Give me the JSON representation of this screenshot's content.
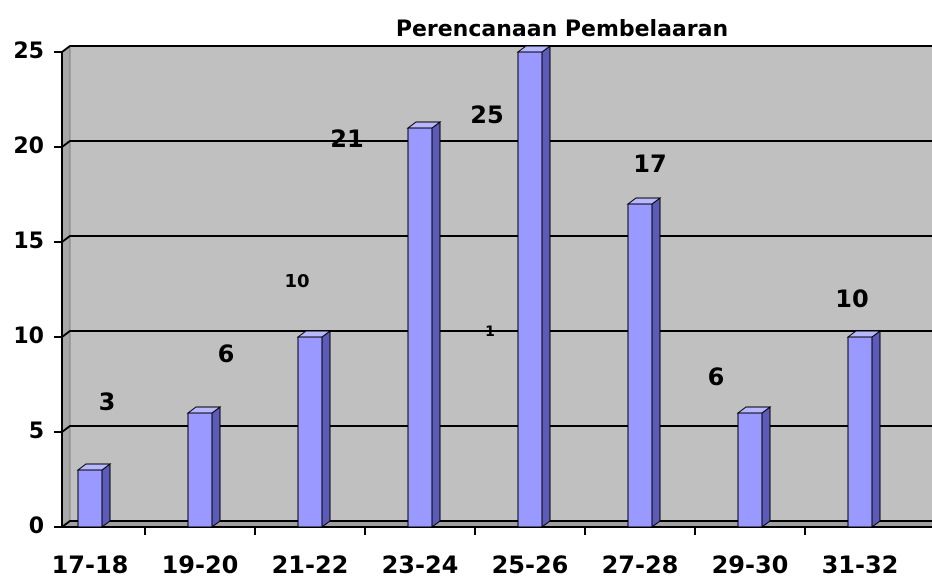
{
  "chart_data": {
    "type": "bar",
    "title": "Perencanaan Pembelaaran",
    "categories": [
      "17-18",
      "19-20",
      "21-22",
      "23-24",
      "25-26",
      "27-28",
      "29-30",
      "31-32"
    ],
    "values": [
      3,
      6,
      10,
      21,
      25,
      17,
      6,
      10
    ],
    "color": "#9999ff",
    "ylim": [
      0,
      25
    ],
    "yticks": [
      0,
      5,
      10,
      15,
      20,
      25
    ],
    "grid": true,
    "annotations": [
      "1"
    ]
  }
}
